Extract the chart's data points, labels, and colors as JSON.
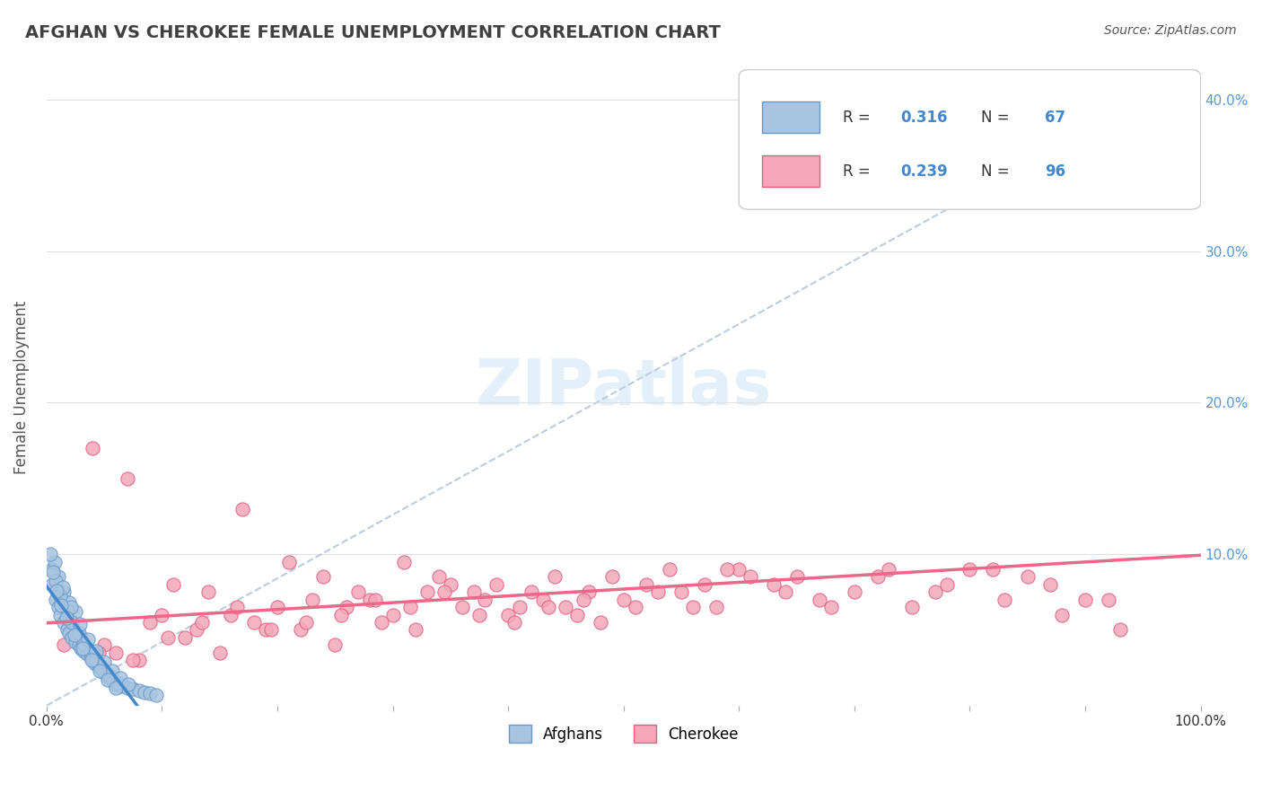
{
  "title": "AFGHAN VS CHEROKEE FEMALE UNEMPLOYMENT CORRELATION CHART",
  "source_text": "Source: ZipAtlas.com",
  "xlabel": "",
  "ylabel": "Female Unemployment",
  "watermark": "ZIPatlas",
  "xlim": [
    0,
    1
  ],
  "ylim": [
    0,
    0.42
  ],
  "xticks": [
    0,
    0.1,
    0.2,
    0.3,
    0.4,
    0.5,
    0.6,
    0.7,
    0.8,
    0.9,
    1.0
  ],
  "yticks": [
    0,
    0.1,
    0.2,
    0.3,
    0.4
  ],
  "xtick_labels": [
    "0.0%",
    "",
    "",
    "",
    "",
    "",
    "",
    "",
    "",
    "",
    "100.0%"
  ],
  "ytick_labels": [
    "",
    "10.0%",
    "20.0%",
    "30.0%",
    "40.0%"
  ],
  "legend_r1": "R = 0.316",
  "legend_n1": "N = 67",
  "legend_r2": "R = 0.239",
  "legend_n2": "N = 96",
  "afghan_color": "#a8c4e0",
  "cherokee_color": "#f4a7b9",
  "afghan_edge": "#6699cc",
  "cherokee_edge": "#e06080",
  "title_color": "#404040",
  "axis_color": "#555555",
  "tick_color_right": "#5599dd",
  "background_color": "#ffffff",
  "grid_color": "#e0e0e0",
  "trend_afghan_color": "#4488cc",
  "trend_cherokee_color": "#ee6688",
  "ref_line_color": "#bbccdd",
  "afghan_R": 0.316,
  "afghan_N": 67,
  "cherokee_R": 0.239,
  "cherokee_N": 96,
  "afghan_x": [
    0.005,
    0.008,
    0.01,
    0.012,
    0.015,
    0.018,
    0.02,
    0.022,
    0.025,
    0.028,
    0.03,
    0.032,
    0.035,
    0.038,
    0.04,
    0.042,
    0.045,
    0.048,
    0.05,
    0.052,
    0.055,
    0.058,
    0.06,
    0.065,
    0.07,
    0.075,
    0.08,
    0.085,
    0.09,
    0.095,
    0.01,
    0.015,
    0.02,
    0.025,
    0.005,
    0.008,
    0.012,
    0.018,
    0.022,
    0.028,
    0.032,
    0.038,
    0.042,
    0.048,
    0.055,
    0.062,
    0.007,
    0.014,
    0.021,
    0.029,
    0.036,
    0.043,
    0.05,
    0.057,
    0.064,
    0.071,
    0.003,
    0.006,
    0.009,
    0.013,
    0.017,
    0.024,
    0.031,
    0.039,
    0.046,
    0.053,
    0.06
  ],
  "afghan_y": [
    0.08,
    0.07,
    0.065,
    0.06,
    0.055,
    0.05,
    0.048,
    0.045,
    0.042,
    0.04,
    0.038,
    0.036,
    0.034,
    0.032,
    0.03,
    0.028,
    0.026,
    0.024,
    0.022,
    0.02,
    0.018,
    0.016,
    0.014,
    0.013,
    0.012,
    0.011,
    0.01,
    0.009,
    0.008,
    0.007,
    0.085,
    0.075,
    0.068,
    0.062,
    0.09,
    0.082,
    0.072,
    0.063,
    0.055,
    0.048,
    0.041,
    0.035,
    0.03,
    0.025,
    0.02,
    0.015,
    0.095,
    0.078,
    0.065,
    0.054,
    0.044,
    0.036,
    0.029,
    0.023,
    0.018,
    0.014,
    0.1,
    0.088,
    0.076,
    0.066,
    0.058,
    0.047,
    0.038,
    0.03,
    0.023,
    0.017,
    0.012
  ],
  "cherokee_x": [
    0.02,
    0.05,
    0.08,
    0.1,
    0.12,
    0.15,
    0.18,
    0.2,
    0.22,
    0.25,
    0.28,
    0.3,
    0.32,
    0.35,
    0.38,
    0.4,
    0.42,
    0.45,
    0.48,
    0.5,
    0.52,
    0.55,
    0.58,
    0.6,
    0.65,
    0.7,
    0.75,
    0.8,
    0.85,
    0.9,
    0.03,
    0.06,
    0.09,
    0.13,
    0.16,
    0.19,
    0.23,
    0.26,
    0.29,
    0.33,
    0.36,
    0.39,
    0.43,
    0.46,
    0.49,
    0.53,
    0.56,
    0.59,
    0.63,
    0.67,
    0.72,
    0.77,
    0.82,
    0.87,
    0.92,
    0.04,
    0.07,
    0.11,
    0.14,
    0.17,
    0.21,
    0.24,
    0.27,
    0.31,
    0.34,
    0.37,
    0.41,
    0.44,
    0.47,
    0.51,
    0.54,
    0.57,
    0.61,
    0.64,
    0.68,
    0.73,
    0.78,
    0.83,
    0.88,
    0.93,
    0.015,
    0.045,
    0.075,
    0.105,
    0.135,
    0.165,
    0.195,
    0.225,
    0.255,
    0.285,
    0.315,
    0.345,
    0.375,
    0.405,
    0.435,
    0.465
  ],
  "cherokee_y": [
    0.05,
    0.04,
    0.03,
    0.06,
    0.045,
    0.035,
    0.055,
    0.065,
    0.05,
    0.04,
    0.07,
    0.06,
    0.05,
    0.08,
    0.07,
    0.06,
    0.075,
    0.065,
    0.055,
    0.07,
    0.08,
    0.075,
    0.065,
    0.09,
    0.085,
    0.075,
    0.065,
    0.09,
    0.085,
    0.07,
    0.045,
    0.035,
    0.055,
    0.05,
    0.06,
    0.05,
    0.07,
    0.065,
    0.055,
    0.075,
    0.065,
    0.08,
    0.07,
    0.06,
    0.085,
    0.075,
    0.065,
    0.09,
    0.08,
    0.07,
    0.085,
    0.075,
    0.09,
    0.08,
    0.07,
    0.17,
    0.15,
    0.08,
    0.075,
    0.13,
    0.095,
    0.085,
    0.075,
    0.095,
    0.085,
    0.075,
    0.065,
    0.085,
    0.075,
    0.065,
    0.09,
    0.08,
    0.085,
    0.075,
    0.065,
    0.09,
    0.08,
    0.07,
    0.06,
    0.05,
    0.04,
    0.035,
    0.03,
    0.045,
    0.055,
    0.065,
    0.05,
    0.055,
    0.06,
    0.07,
    0.065,
    0.075,
    0.06,
    0.055,
    0.065,
    0.07
  ]
}
